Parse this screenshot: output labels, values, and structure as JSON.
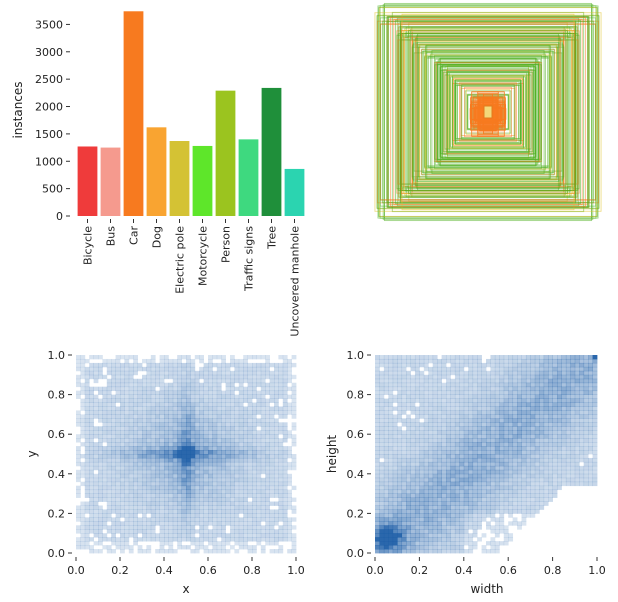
{
  "chart_data": [
    {
      "type": "bar",
      "ylabel": "instances",
      "ylim": [
        0,
        3800
      ],
      "yticks": [
        0,
        500,
        1000,
        1500,
        2000,
        2500,
        3000,
        3500
      ],
      "grid": false,
      "categories": [
        "Bicycle",
        "Bus",
        "Car",
        "Dog",
        "Electric pole",
        "Motorcycle",
        "Person",
        "Traffic signs",
        "Tree",
        "Uncovered manhole"
      ],
      "values": [
        1270,
        1250,
        3740,
        1620,
        1370,
        1280,
        2290,
        1400,
        2340,
        860
      ],
      "colors": [
        "#ef3b3b",
        "#f59a8e",
        "#f77a1f",
        "#f9a431",
        "#d4c234",
        "#5ee62a",
        "#9bc41f",
        "#3ed97f",
        "#1f8f3a",
        "#2bd4b0"
      ]
    },
    {
      "type": "bbox_overlay",
      "description_free": true,
      "colors": [
        "#4caf1e",
        "#f77a1f",
        "#e2c12a"
      ]
    },
    {
      "type": "heatmap",
      "xlabel": "x",
      "ylabel": "y",
      "xlim": [
        0,
        1
      ],
      "ylim": [
        0,
        1
      ],
      "xticks": [
        0.0,
        0.2,
        0.4,
        0.6,
        0.8,
        1.0
      ],
      "yticks": [
        0.0,
        0.2,
        0.4,
        0.6,
        0.8,
        1.0
      ],
      "hotspot": [
        0.5,
        0.5
      ],
      "color": "#1f5fa8"
    },
    {
      "type": "heatmap",
      "xlabel": "width",
      "ylabel": "height",
      "xlim": [
        0,
        1
      ],
      "ylim": [
        0,
        1
      ],
      "xticks": [
        0.0,
        0.2,
        0.4,
        0.6,
        0.8,
        1.0
      ],
      "yticks": [
        0.0,
        0.2,
        0.4,
        0.6,
        0.8,
        1.0
      ],
      "hotspot": [
        0.06,
        0.08
      ],
      "color": "#1f5fa8"
    }
  ]
}
